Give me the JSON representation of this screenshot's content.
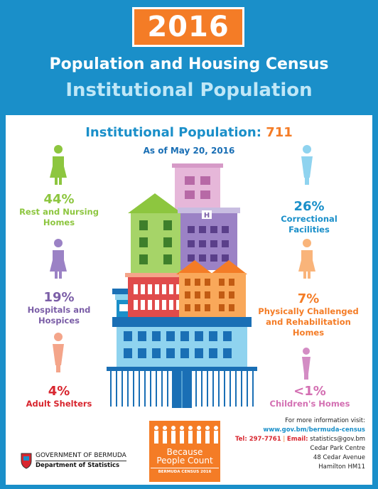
{
  "header": {
    "year": "2016",
    "title": "Population and Housing Census",
    "subtitle": "Institutional Population"
  },
  "main": {
    "heading_label": "Institutional Population:",
    "heading_value": "711",
    "as_of": "As of May 20, 2016"
  },
  "stats": {
    "rest_nursing": {
      "pct": "44%",
      "label1": "Rest and Nursing",
      "label2": "Homes",
      "color": "#8dc63f"
    },
    "hospitals": {
      "pct": "19%",
      "label1": "Hospitals and",
      "label2": "Hospices",
      "color": "#7b5ea7"
    },
    "adult_shelters": {
      "pct": "4%",
      "label1": "Adult Shelters",
      "color": "#d8262f",
      "pct_color": "#d8262f"
    },
    "correctional": {
      "pct": "26%",
      "label1": "Correctional",
      "label2": "Facilities",
      "color": "#1a8fc9"
    },
    "physically": {
      "pct": "7%",
      "label1": "Physically Challenged",
      "label2": "and Rehabilitation",
      "label3": "Homes",
      "color": "#f47c26"
    },
    "childrens": {
      "pct": "<1%",
      "label1": "Children's Homes",
      "color": "#d36fb2"
    }
  },
  "footer": {
    "more_info": "For more information visit:",
    "website": "www.gov.bm/bermuda-census",
    "tel": "Tel: 297-7761",
    "separator": "|",
    "email_label": "Email:",
    "email": "statistics@gov.bm",
    "addr1": "Cedar Park Centre",
    "addr2": "48 Cedar Avenue",
    "addr3": "Hamilton HM11",
    "gov": "GOVERNMENT OF BERMUDA",
    "dept": "Department of Statistics",
    "logo1": "Because",
    "logo2": "People Count",
    "logo3": "BERMUDA CENSUS 2016"
  },
  "hospital_sign": "H",
  "colors": {
    "blue": "#1a8fc9",
    "orange": "#f47c26",
    "green": "#8dc63f",
    "purple": "#7b5ea7",
    "red": "#d8262f",
    "pink": "#d36fb2"
  }
}
